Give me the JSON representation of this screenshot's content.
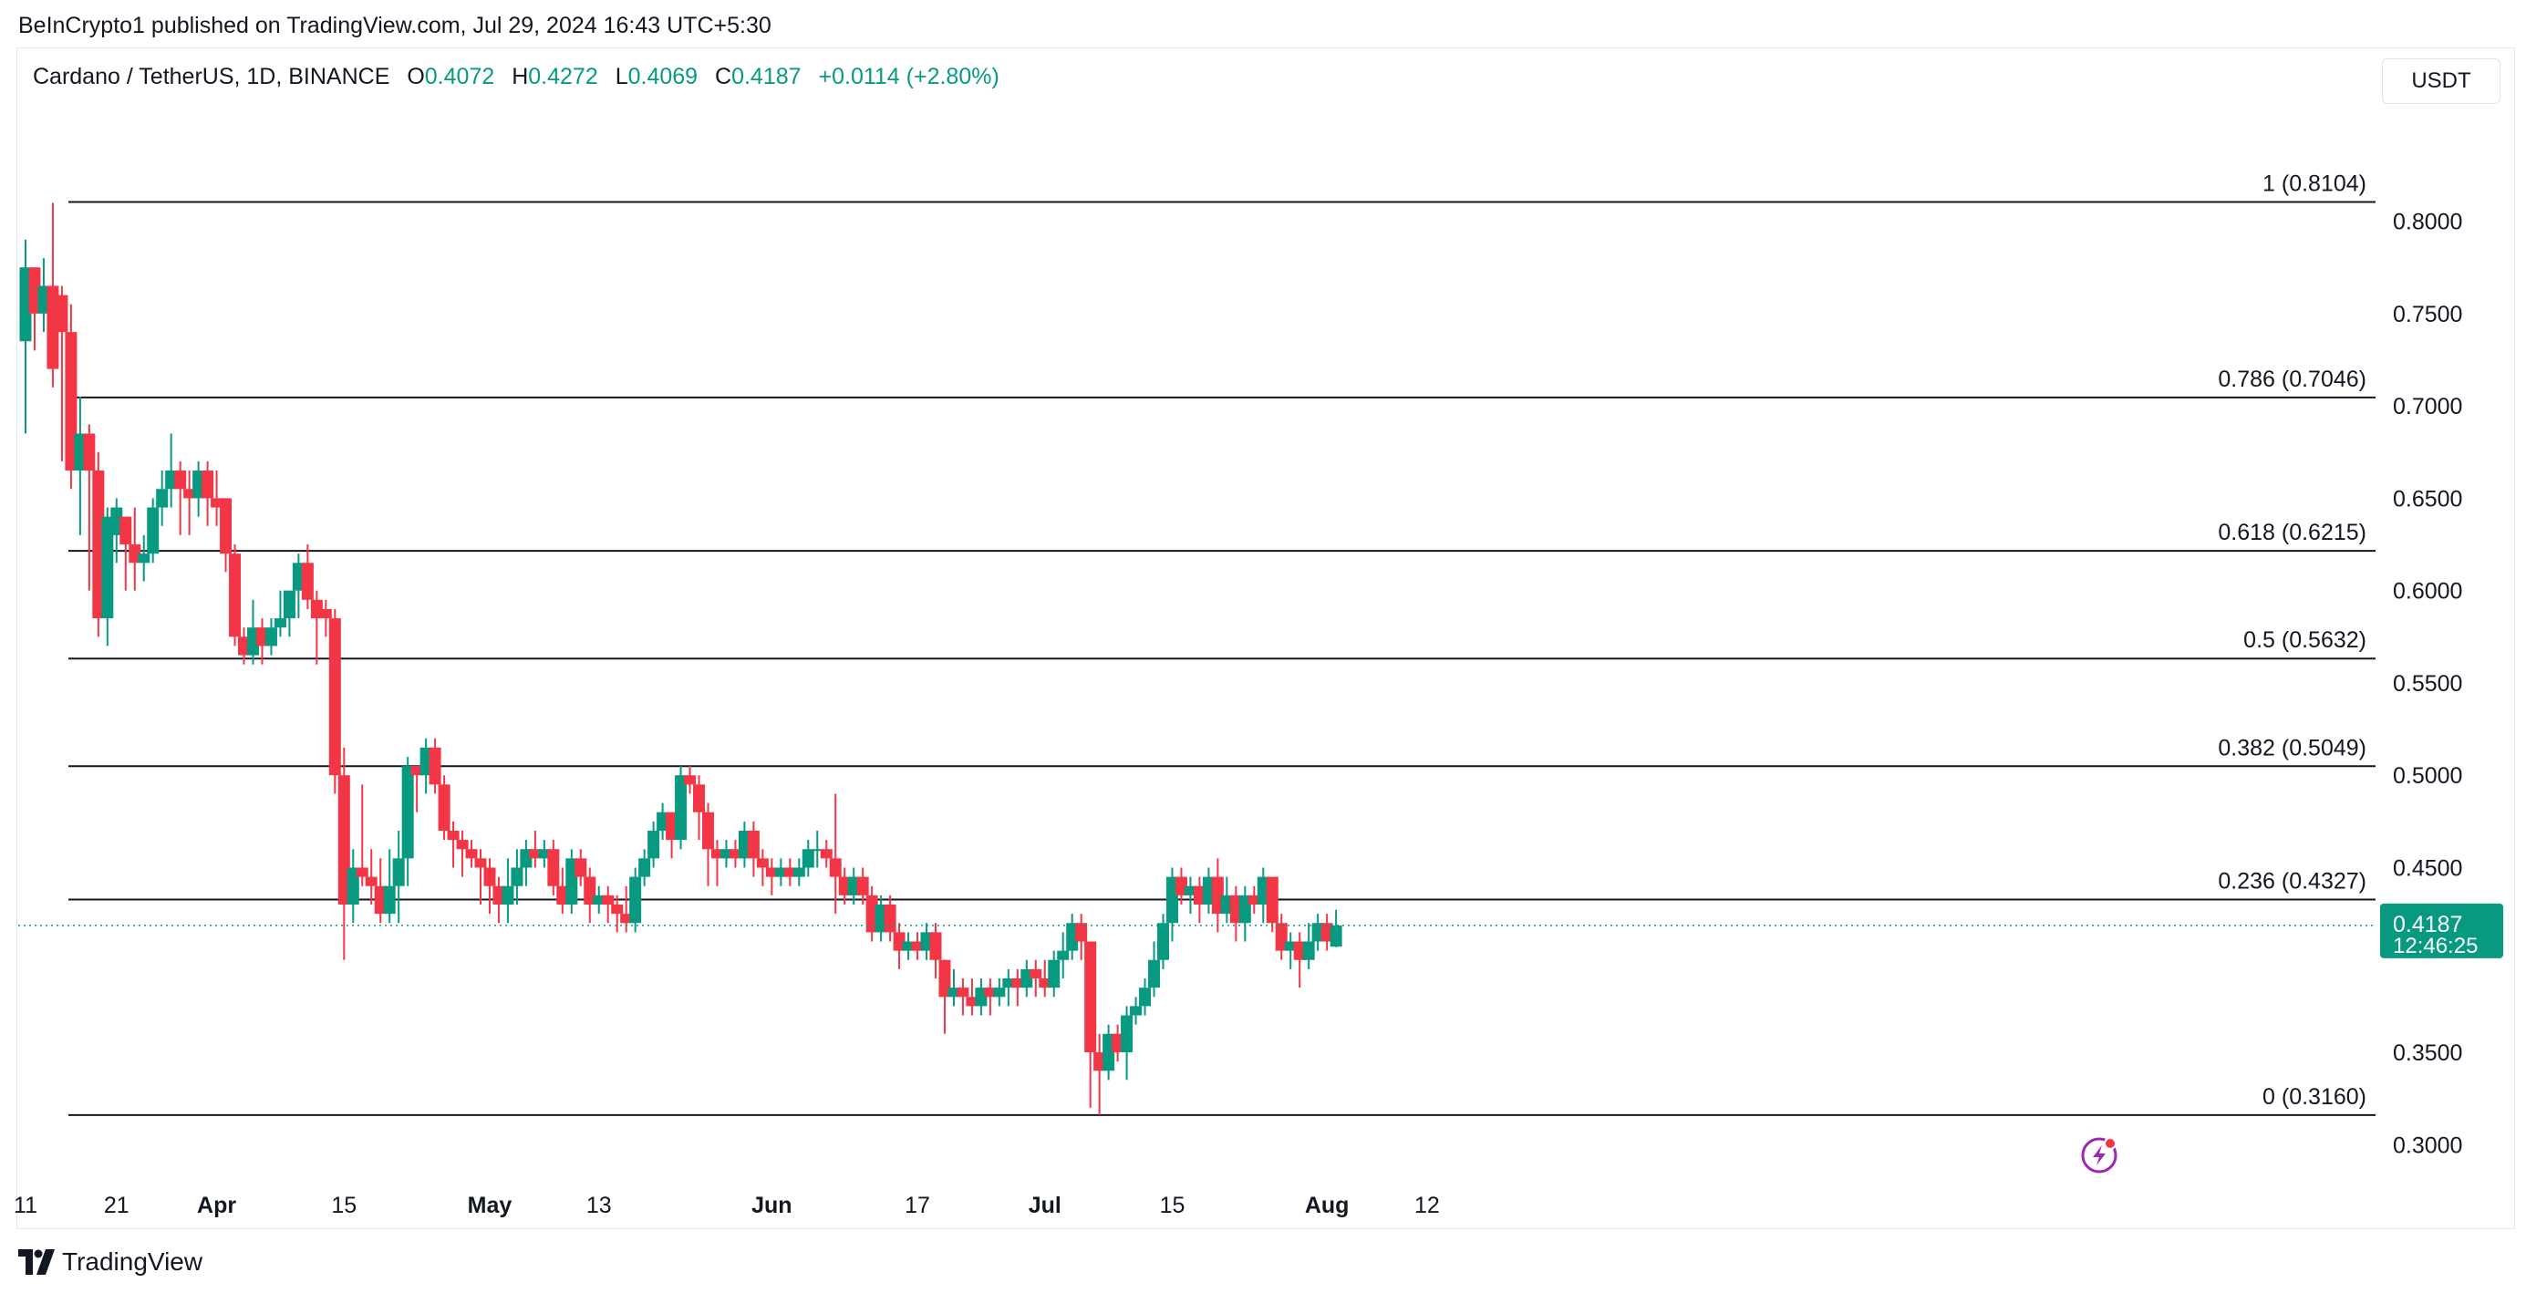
{
  "published": "BeInCrypto1 published on TradingView.com, Jul 29, 2024 16:43 UTC+5:30",
  "legend": {
    "symbol": "Cardano / TetherUS, 1D, BINANCE",
    "o_label": "O",
    "o": "0.4072",
    "h_label": "H",
    "h": "0.4272",
    "l_label": "L",
    "l": "0.4069",
    "c_label": "C",
    "c": "0.4187",
    "change": "+0.0114 (+2.80%)"
  },
  "currency": "USDT",
  "footer": {
    "brand": "TradingView"
  },
  "colors": {
    "up": "#089981",
    "down": "#f23645",
    "line": "#131722",
    "grid": "#e0e3eb"
  },
  "chart_data": {
    "type": "candlestick",
    "title": "Cardano / TetherUS, 1D, BINANCE",
    "ylim": [
      0.2804,
      0.8704
    ],
    "y_ticks": [
      "0.8000",
      "0.7500",
      "0.7000",
      "0.6500",
      "0.6000",
      "0.5500",
      "0.5000",
      "0.4500",
      "0.3500",
      "0.3000"
    ],
    "x_ticks": [
      {
        "label": "11",
        "bold": false,
        "day": 0
      },
      {
        "label": "21",
        "bold": false,
        "day": 10
      },
      {
        "label": "Apr",
        "bold": true,
        "day": 21
      },
      {
        "label": "15",
        "bold": false,
        "day": 35
      },
      {
        "label": "May",
        "bold": true,
        "day": 51
      },
      {
        "label": "13",
        "bold": false,
        "day": 63
      },
      {
        "label": "Jun",
        "bold": true,
        "day": 82
      },
      {
        "label": "17",
        "bold": false,
        "day": 98
      },
      {
        "label": "Jul",
        "bold": true,
        "day": 112
      },
      {
        "label": "15",
        "bold": false,
        "day": 126
      },
      {
        "label": "Aug",
        "bold": true,
        "day": 143
      },
      {
        "label": "12",
        "bold": false,
        "day": 154
      }
    ],
    "fib_levels": [
      {
        "label": "1 (0.8104)",
        "value": 0.8104
      },
      {
        "label": "0.786 (0.7046)",
        "value": 0.7046
      },
      {
        "label": "0.618 (0.6215)",
        "value": 0.6215
      },
      {
        "label": "0.5 (0.5632)",
        "value": 0.5632
      },
      {
        "label": "0.382 (0.5049)",
        "value": 0.5049
      },
      {
        "label": "0.236 (0.4327)",
        "value": 0.4327
      },
      {
        "label": "0 (0.3160)",
        "value": 0.316
      }
    ],
    "last_price": {
      "value": 0.4187,
      "label": "0.4187",
      "countdown": "12:46:25"
    },
    "candles": [
      [
        0.735,
        0.775,
        0.79,
        0.685
      ],
      [
        0.775,
        0.75,
        0.775,
        0.73
      ],
      [
        0.75,
        0.765,
        0.78,
        0.74
      ],
      [
        0.765,
        0.72,
        0.81,
        0.71
      ],
      [
        0.76,
        0.74,
        0.765,
        0.67
      ],
      [
        0.74,
        0.665,
        0.755,
        0.655
      ],
      [
        0.665,
        0.685,
        0.705,
        0.63
      ],
      [
        0.685,
        0.665,
        0.69,
        0.6
      ],
      [
        0.665,
        0.585,
        0.675,
        0.575
      ],
      [
        0.585,
        0.64,
        0.645,
        0.57
      ],
      [
        0.63,
        0.645,
        0.65,
        0.615
      ],
      [
        0.64,
        0.625,
        0.64,
        0.6
      ],
      [
        0.625,
        0.615,
        0.645,
        0.6
      ],
      [
        0.615,
        0.62,
        0.63,
        0.605
      ],
      [
        0.62,
        0.645,
        0.65,
        0.615
      ],
      [
        0.645,
        0.655,
        0.665,
        0.635
      ],
      [
        0.655,
        0.665,
        0.685,
        0.645
      ],
      [
        0.665,
        0.655,
        0.67,
        0.63
      ],
      [
        0.655,
        0.65,
        0.665,
        0.63
      ],
      [
        0.65,
        0.665,
        0.67,
        0.64
      ],
      [
        0.665,
        0.65,
        0.67,
        0.635
      ],
      [
        0.65,
        0.645,
        0.665,
        0.635
      ],
      [
        0.65,
        0.62,
        0.65,
        0.61
      ],
      [
        0.62,
        0.575,
        0.625,
        0.57
      ],
      [
        0.575,
        0.565,
        0.58,
        0.56
      ],
      [
        0.565,
        0.58,
        0.595,
        0.56
      ],
      [
        0.58,
        0.57,
        0.585,
        0.56
      ],
      [
        0.57,
        0.58,
        0.585,
        0.565
      ],
      [
        0.58,
        0.585,
        0.6,
        0.575
      ],
      [
        0.585,
        0.6,
        0.6,
        0.575
      ],
      [
        0.6,
        0.615,
        0.62,
        0.585
      ],
      [
        0.615,
        0.595,
        0.625,
        0.59
      ],
      [
        0.595,
        0.585,
        0.6,
        0.56
      ],
      [
        0.59,
        0.585,
        0.595,
        0.575
      ],
      [
        0.585,
        0.5,
        0.59,
        0.49
      ],
      [
        0.5,
        0.43,
        0.515,
        0.4
      ],
      [
        0.43,
        0.45,
        0.46,
        0.42
      ],
      [
        0.45,
        0.445,
        0.495,
        0.44
      ],
      [
        0.445,
        0.44,
        0.46,
        0.43
      ],
      [
        0.44,
        0.425,
        0.455,
        0.42
      ],
      [
        0.425,
        0.44,
        0.46,
        0.42
      ],
      [
        0.44,
        0.455,
        0.47,
        0.42
      ],
      [
        0.455,
        0.505,
        0.51,
        0.44
      ],
      [
        0.505,
        0.5,
        0.505,
        0.48
      ],
      [
        0.5,
        0.515,
        0.52,
        0.49
      ],
      [
        0.515,
        0.495,
        0.52,
        0.49
      ],
      [
        0.495,
        0.47,
        0.5,
        0.465
      ],
      [
        0.47,
        0.465,
        0.475,
        0.45
      ],
      [
        0.465,
        0.46,
        0.47,
        0.445
      ],
      [
        0.46,
        0.455,
        0.465,
        0.45
      ],
      [
        0.455,
        0.45,
        0.46,
        0.43
      ],
      [
        0.45,
        0.44,
        0.455,
        0.425
      ],
      [
        0.44,
        0.43,
        0.445,
        0.42
      ],
      [
        0.43,
        0.44,
        0.455,
        0.42
      ],
      [
        0.44,
        0.45,
        0.46,
        0.43
      ],
      [
        0.45,
        0.46,
        0.465,
        0.44
      ],
      [
        0.46,
        0.455,
        0.47,
        0.45
      ],
      [
        0.455,
        0.46,
        0.465,
        0.45
      ],
      [
        0.46,
        0.44,
        0.465,
        0.435
      ],
      [
        0.44,
        0.43,
        0.45,
        0.425
      ],
      [
        0.43,
        0.455,
        0.46,
        0.425
      ],
      [
        0.455,
        0.445,
        0.46,
        0.44
      ],
      [
        0.445,
        0.43,
        0.45,
        0.42
      ],
      [
        0.43,
        0.435,
        0.44,
        0.425
      ],
      [
        0.435,
        0.43,
        0.44,
        0.42
      ],
      [
        0.43,
        0.425,
        0.435,
        0.415
      ],
      [
        0.425,
        0.42,
        0.44,
        0.415
      ],
      [
        0.42,
        0.445,
        0.45,
        0.415
      ],
      [
        0.445,
        0.455,
        0.46,
        0.44
      ],
      [
        0.455,
        0.47,
        0.475,
        0.45
      ],
      [
        0.47,
        0.48,
        0.485,
        0.465
      ],
      [
        0.48,
        0.465,
        0.48,
        0.455
      ],
      [
        0.465,
        0.5,
        0.505,
        0.46
      ],
      [
        0.5,
        0.495,
        0.505,
        0.49
      ],
      [
        0.495,
        0.48,
        0.5,
        0.465
      ],
      [
        0.48,
        0.46,
        0.485,
        0.44
      ],
      [
        0.46,
        0.455,
        0.465,
        0.44
      ],
      [
        0.455,
        0.46,
        0.465,
        0.45
      ],
      [
        0.46,
        0.455,
        0.465,
        0.45
      ],
      [
        0.455,
        0.47,
        0.475,
        0.45
      ],
      [
        0.47,
        0.455,
        0.475,
        0.445
      ],
      [
        0.455,
        0.45,
        0.46,
        0.44
      ],
      [
        0.45,
        0.445,
        0.455,
        0.435
      ],
      [
        0.445,
        0.45,
        0.455,
        0.44
      ],
      [
        0.45,
        0.445,
        0.455,
        0.44
      ],
      [
        0.445,
        0.45,
        0.455,
        0.44
      ],
      [
        0.45,
        0.46,
        0.465,
        0.445
      ],
      [
        0.46,
        0.46,
        0.47,
        0.45
      ],
      [
        0.46,
        0.455,
        0.465,
        0.45
      ],
      [
        0.455,
        0.445,
        0.49,
        0.425
      ],
      [
        0.445,
        0.435,
        0.45,
        0.43
      ],
      [
        0.435,
        0.445,
        0.45,
        0.43
      ],
      [
        0.445,
        0.435,
        0.45,
        0.43
      ],
      [
        0.435,
        0.415,
        0.44,
        0.41
      ],
      [
        0.415,
        0.43,
        0.435,
        0.41
      ],
      [
        0.43,
        0.415,
        0.435,
        0.41
      ],
      [
        0.415,
        0.405,
        0.42,
        0.395
      ],
      [
        0.405,
        0.41,
        0.415,
        0.4
      ],
      [
        0.41,
        0.405,
        0.415,
        0.4
      ],
      [
        0.405,
        0.415,
        0.42,
        0.4
      ],
      [
        0.415,
        0.4,
        0.42,
        0.39
      ],
      [
        0.4,
        0.38,
        0.4,
        0.36
      ],
      [
        0.38,
        0.385,
        0.395,
        0.375
      ],
      [
        0.385,
        0.38,
        0.39,
        0.37
      ],
      [
        0.38,
        0.375,
        0.39,
        0.37
      ],
      [
        0.375,
        0.385,
        0.39,
        0.37
      ],
      [
        0.385,
        0.38,
        0.39,
        0.37
      ],
      [
        0.38,
        0.385,
        0.39,
        0.375
      ],
      [
        0.385,
        0.39,
        0.395,
        0.375
      ],
      [
        0.39,
        0.385,
        0.395,
        0.375
      ],
      [
        0.385,
        0.395,
        0.4,
        0.38
      ],
      [
        0.395,
        0.39,
        0.4,
        0.38
      ],
      [
        0.39,
        0.385,
        0.4,
        0.38
      ],
      [
        0.385,
        0.4,
        0.405,
        0.38
      ],
      [
        0.4,
        0.405,
        0.415,
        0.39
      ],
      [
        0.405,
        0.42,
        0.425,
        0.4
      ],
      [
        0.42,
        0.41,
        0.425,
        0.4
      ],
      [
        0.41,
        0.35,
        0.41,
        0.32
      ],
      [
        0.35,
        0.34,
        0.36,
        0.316
      ],
      [
        0.34,
        0.36,
        0.365,
        0.335
      ],
      [
        0.36,
        0.35,
        0.365,
        0.345
      ],
      [
        0.35,
        0.37,
        0.375,
        0.335
      ],
      [
        0.37,
        0.375,
        0.38,
        0.365
      ],
      [
        0.375,
        0.385,
        0.39,
        0.37
      ],
      [
        0.385,
        0.4,
        0.41,
        0.38
      ],
      [
        0.4,
        0.42,
        0.425,
        0.395
      ],
      [
        0.42,
        0.445,
        0.45,
        0.41
      ],
      [
        0.445,
        0.435,
        0.45,
        0.43
      ],
      [
        0.435,
        0.44,
        0.445,
        0.425
      ],
      [
        0.44,
        0.43,
        0.445,
        0.42
      ],
      [
        0.43,
        0.445,
        0.45,
        0.425
      ],
      [
        0.445,
        0.425,
        0.455,
        0.415
      ],
      [
        0.425,
        0.435,
        0.445,
        0.42
      ],
      [
        0.435,
        0.42,
        0.44,
        0.41
      ],
      [
        0.42,
        0.435,
        0.44,
        0.41
      ],
      [
        0.435,
        0.43,
        0.44,
        0.425
      ],
      [
        0.43,
        0.445,
        0.45,
        0.42
      ],
      [
        0.445,
        0.42,
        0.445,
        0.415
      ],
      [
        0.42,
        0.405,
        0.425,
        0.4
      ],
      [
        0.405,
        0.41,
        0.415,
        0.395
      ],
      [
        0.41,
        0.4,
        0.415,
        0.385
      ],
      [
        0.4,
        0.41,
        0.42,
        0.395
      ],
      [
        0.41,
        0.42,
        0.425,
        0.405
      ],
      [
        0.42,
        0.41,
        0.425,
        0.405
      ],
      [
        0.4072,
        0.4187,
        0.4272,
        0.4069
      ]
    ]
  }
}
